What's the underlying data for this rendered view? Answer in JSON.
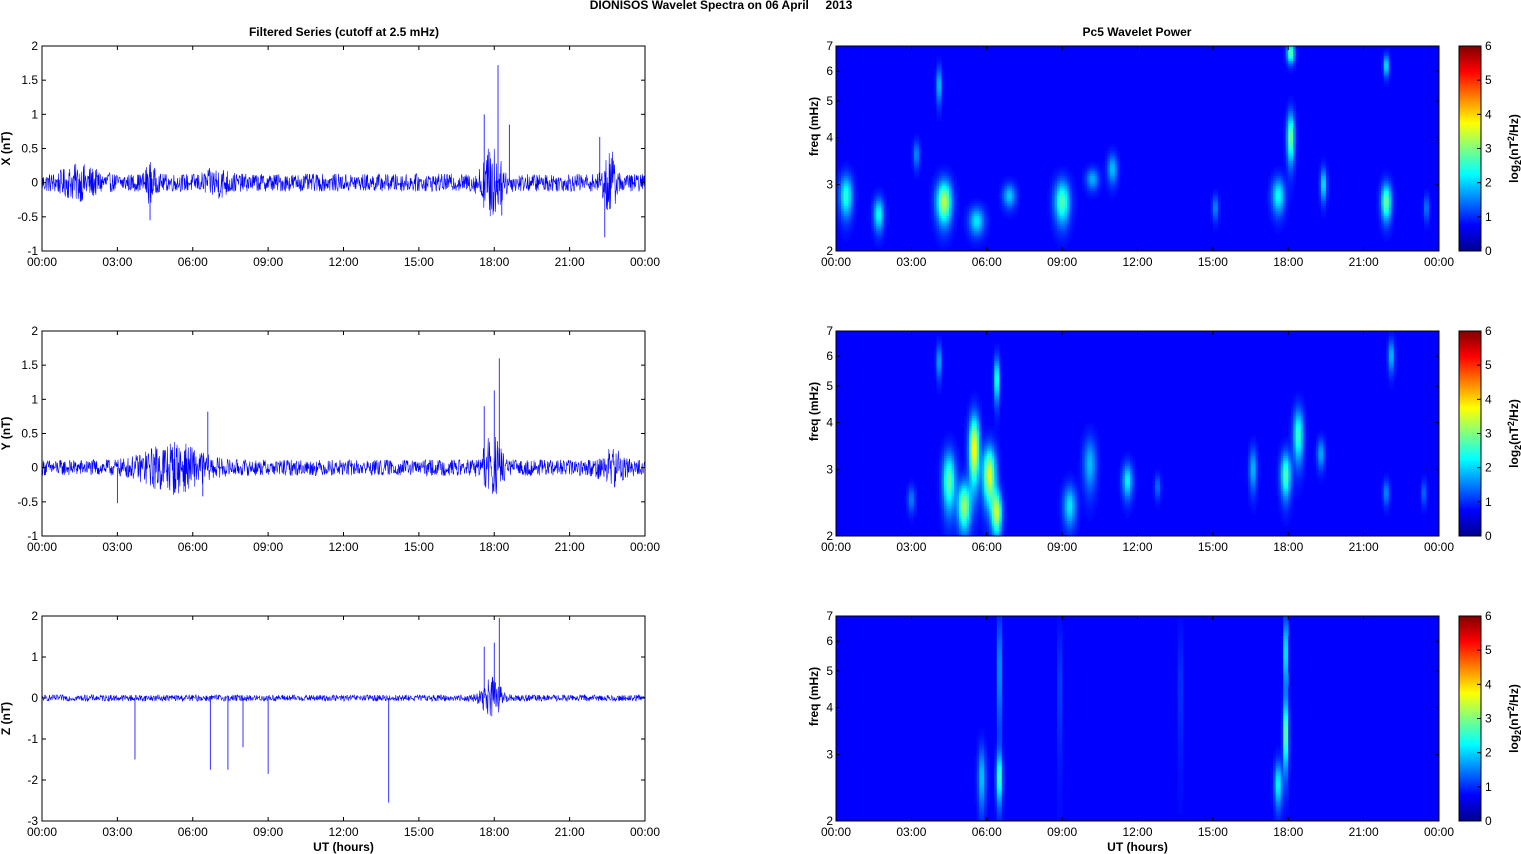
{
  "figure": {
    "title": "DIONISOS Wavelet Spectra on 06 April     2013",
    "left_title": "Filtered Series (cutoff at 2.5 mHz)",
    "right_title": "Pc5 Wavelet Power"
  },
  "chart_data": [
    {
      "type": "line",
      "panel": "X",
      "ylabel": "X (nT)",
      "xlabel": "",
      "xlim": [
        0,
        24
      ],
      "ylim": [
        -1,
        2
      ],
      "yticks": [
        "2",
        "1.5",
        "1",
        "0.5",
        "0",
        "-0.5",
        "-1"
      ],
      "xticks": [
        "00:00",
        "03:00",
        "06:00",
        "09:00",
        "12:00",
        "15:00",
        "18:00",
        "21:00",
        "00:00"
      ],
      "noise_amplitude": 0.1,
      "bursts": [
        {
          "x": 1.5,
          "width": 1.5,
          "amp": 0.12
        },
        {
          "x": 4.3,
          "width": 0.4,
          "amp": 0.15
        },
        {
          "x": 7.0,
          "width": 1.0,
          "amp": 0.09
        },
        {
          "x": 17.9,
          "width": 0.8,
          "amp": 0.35
        },
        {
          "x": 22.6,
          "width": 0.5,
          "amp": 0.3
        }
      ],
      "spikes": [
        {
          "x": 18.15,
          "value": 1.72
        },
        {
          "x": 17.6,
          "value": 1.0
        },
        {
          "x": 18.6,
          "value": 0.85
        },
        {
          "x": 18.3,
          "value": -0.48
        },
        {
          "x": 4.3,
          "value": -0.55
        },
        {
          "x": 22.4,
          "value": -0.8
        },
        {
          "x": 22.2,
          "value": 0.67
        }
      ]
    },
    {
      "type": "line",
      "panel": "Y",
      "ylabel": "Y (nT)",
      "xlabel": "",
      "xlim": [
        0,
        24
      ],
      "ylim": [
        -1,
        2
      ],
      "yticks": [
        "2",
        "1.5",
        "1",
        "0.5",
        "0",
        "-0.5",
        "-1"
      ],
      "xticks": [
        "00:00",
        "03:00",
        "06:00",
        "09:00",
        "12:00",
        "15:00",
        "18:00",
        "21:00",
        "00:00"
      ],
      "noise_amplitude": 0.09,
      "bursts": [
        {
          "x": 5.2,
          "width": 2.5,
          "amp": 0.22
        },
        {
          "x": 17.9,
          "width": 0.8,
          "amp": 0.3
        },
        {
          "x": 22.7,
          "width": 1.0,
          "amp": 0.15
        }
      ],
      "spikes": [
        {
          "x": 18.2,
          "value": 1.6
        },
        {
          "x": 6.6,
          "value": 0.82
        },
        {
          "x": 17.6,
          "value": 0.9
        },
        {
          "x": 18.0,
          "value": 1.13
        },
        {
          "x": 3.0,
          "value": -0.52
        },
        {
          "x": 6.4,
          "value": -0.42
        }
      ]
    },
    {
      "type": "line",
      "panel": "Z",
      "ylabel": "Z (nT)",
      "xlabel": "UT (hours)",
      "xlim": [
        0,
        24
      ],
      "ylim": [
        -3,
        2
      ],
      "yticks": [
        "2",
        "1",
        "0",
        "-1",
        "-2",
        "-3"
      ],
      "xticks": [
        "00:00",
        "03:00",
        "06:00",
        "09:00",
        "12:00",
        "15:00",
        "18:00",
        "21:00",
        "00:00"
      ],
      "noise_amplitude": 0.06,
      "bursts": [
        {
          "x": 17.9,
          "width": 0.8,
          "amp": 0.35
        }
      ],
      "spikes": [
        {
          "x": 3.7,
          "value": -1.5
        },
        {
          "x": 6.7,
          "value": -1.75
        },
        {
          "x": 7.4,
          "value": -1.75
        },
        {
          "x": 8.0,
          "value": -1.2
        },
        {
          "x": 9.0,
          "value": -1.85
        },
        {
          "x": 13.8,
          "value": -2.55
        },
        {
          "x": 18.2,
          "value": 1.95
        },
        {
          "x": 17.6,
          "value": 1.25
        },
        {
          "x": 18.0,
          "value": 1.35
        }
      ]
    },
    {
      "type": "heatmap",
      "panel": "X",
      "ylabel": "freq (mHz)",
      "xlabel": "",
      "xlim": [
        0,
        24
      ],
      "ylim": [
        2,
        7
      ],
      "yscale": "log",
      "yticks": [
        "7",
        "6",
        "5",
        "4",
        "3",
        "2"
      ],
      "xticks": [
        "00:00",
        "03:00",
        "06:00",
        "09:00",
        "12:00",
        "15:00",
        "18:00",
        "21:00",
        "00:00"
      ],
      "colorbar": {
        "label": "log2(nT2/Hz)",
        "range": [
          0,
          6
        ],
        "ticks": [
          "6",
          "5",
          "4",
          "3",
          "2",
          "1",
          "0"
        ]
      },
      "blobs": [
        {
          "t": 0.4,
          "f": 2.8,
          "power": 2.0,
          "tw": 0.25,
          "fw": 0.35
        },
        {
          "t": 1.7,
          "f": 2.5,
          "power": 1.8,
          "tw": 0.2,
          "fw": 0.25
        },
        {
          "t": 3.2,
          "f": 3.6,
          "power": 1.0,
          "tw": 0.12,
          "fw": 0.3
        },
        {
          "t": 4.3,
          "f": 2.7,
          "power": 3.0,
          "tw": 0.3,
          "fw": 0.35
        },
        {
          "t": 4.1,
          "f": 5.5,
          "power": 1.5,
          "tw": 0.1,
          "fw": 0.6
        },
        {
          "t": 5.6,
          "f": 2.4,
          "power": 1.6,
          "tw": 0.3,
          "fw": 0.2
        },
        {
          "t": 6.9,
          "f": 2.8,
          "power": 1.4,
          "tw": 0.25,
          "fw": 0.2
        },
        {
          "t": 9.0,
          "f": 2.7,
          "power": 2.3,
          "tw": 0.3,
          "fw": 0.35
        },
        {
          "t": 10.2,
          "f": 3.1,
          "power": 1.2,
          "tw": 0.25,
          "fw": 0.2
        },
        {
          "t": 11.0,
          "f": 3.3,
          "power": 1.3,
          "tw": 0.2,
          "fw": 0.3
        },
        {
          "t": 15.1,
          "f": 2.6,
          "power": 1.0,
          "tw": 0.12,
          "fw": 0.2
        },
        {
          "t": 17.6,
          "f": 2.8,
          "power": 1.8,
          "tw": 0.25,
          "fw": 0.3
        },
        {
          "t": 18.1,
          "f": 4.0,
          "power": 2.6,
          "tw": 0.15,
          "fw": 0.6
        },
        {
          "t": 18.1,
          "f": 6.7,
          "power": 2.5,
          "tw": 0.15,
          "fw": 0.4
        },
        {
          "t": 19.4,
          "f": 3.0,
          "power": 1.7,
          "tw": 0.12,
          "fw": 0.3
        },
        {
          "t": 21.9,
          "f": 2.7,
          "power": 2.5,
          "tw": 0.2,
          "fw": 0.3
        },
        {
          "t": 21.9,
          "f": 6.2,
          "power": 1.8,
          "tw": 0.1,
          "fw": 0.4
        },
        {
          "t": 23.5,
          "f": 2.6,
          "power": 0.9,
          "tw": 0.1,
          "fw": 0.2
        }
      ]
    },
    {
      "type": "heatmap",
      "panel": "Y",
      "ylabel": "freq (mHz)",
      "xlabel": "",
      "xlim": [
        0,
        24
      ],
      "ylim": [
        2,
        7
      ],
      "yscale": "log",
      "yticks": [
        "7",
        "6",
        "5",
        "4",
        "3",
        "2"
      ],
      "xticks": [
        "00:00",
        "03:00",
        "06:00",
        "09:00",
        "12:00",
        "15:00",
        "18:00",
        "21:00",
        "00:00"
      ],
      "colorbar": {
        "label": "log2(nT2/Hz)",
        "range": [
          0,
          6
        ],
        "ticks": [
          "6",
          "5",
          "4",
          "3",
          "2",
          "1",
          "0"
        ]
      },
      "blobs": [
        {
          "t": 4.5,
          "f": 2.8,
          "power": 2.4,
          "tw": 0.25,
          "fw": 0.5
        },
        {
          "t": 5.1,
          "f": 2.4,
          "power": 2.8,
          "tw": 0.25,
          "fw": 0.35
        },
        {
          "t": 5.5,
          "f": 3.4,
          "power": 3.6,
          "tw": 0.2,
          "fw": 0.7
        },
        {
          "t": 6.1,
          "f": 2.9,
          "power": 3.3,
          "tw": 0.25,
          "fw": 0.5
        },
        {
          "t": 6.4,
          "f": 2.3,
          "power": 3.0,
          "tw": 0.2,
          "fw": 0.3
        },
        {
          "t": 6.4,
          "f": 5.2,
          "power": 2.2,
          "tw": 0.1,
          "fw": 0.7
        },
        {
          "t": 4.1,
          "f": 5.8,
          "power": 1.3,
          "tw": 0.1,
          "fw": 0.6
        },
        {
          "t": 3.0,
          "f": 2.5,
          "power": 0.9,
          "tw": 0.15,
          "fw": 0.2
        },
        {
          "t": 9.3,
          "f": 2.4,
          "power": 1.6,
          "tw": 0.25,
          "fw": 0.3
        },
        {
          "t": 10.1,
          "f": 3.1,
          "power": 1.3,
          "tw": 0.25,
          "fw": 0.5
        },
        {
          "t": 11.6,
          "f": 2.8,
          "power": 1.7,
          "tw": 0.2,
          "fw": 0.3
        },
        {
          "t": 12.8,
          "f": 2.7,
          "power": 0.8,
          "tw": 0.12,
          "fw": 0.2
        },
        {
          "t": 16.6,
          "f": 3.0,
          "power": 1.3,
          "tw": 0.15,
          "fw": 0.4
        },
        {
          "t": 17.9,
          "f": 2.9,
          "power": 2.3,
          "tw": 0.2,
          "fw": 0.4
        },
        {
          "t": 18.4,
          "f": 3.7,
          "power": 2.1,
          "tw": 0.2,
          "fw": 0.6
        },
        {
          "t": 19.3,
          "f": 3.3,
          "power": 1.2,
          "tw": 0.15,
          "fw": 0.3
        },
        {
          "t": 21.9,
          "f": 2.6,
          "power": 1.0,
          "tw": 0.12,
          "fw": 0.2
        },
        {
          "t": 22.1,
          "f": 6.0,
          "power": 1.4,
          "tw": 0.12,
          "fw": 0.6
        },
        {
          "t": 23.4,
          "f": 2.6,
          "power": 0.8,
          "tw": 0.1,
          "fw": 0.2
        }
      ]
    },
    {
      "type": "heatmap",
      "panel": "Z",
      "ylabel": "freq (mHz)",
      "xlabel": "UT (hours)",
      "xlim": [
        0,
        24
      ],
      "ylim": [
        2,
        7
      ],
      "yscale": "log",
      "yticks": [
        "7",
        "6",
        "5",
        "4",
        "3",
        "2"
      ],
      "xticks": [
        "00:00",
        "03:00",
        "06:00",
        "09:00",
        "12:00",
        "15:00",
        "18:00",
        "21:00",
        "00:00"
      ],
      "colorbar": {
        "label": "log2(nT2/Hz)",
        "range": [
          0,
          6
        ],
        "ticks": [
          "6",
          "5",
          "4",
          "3",
          "2",
          "1",
          "0"
        ]
      },
      "blobs": [
        {
          "t": 5.8,
          "f": 2.6,
          "power": 1.4,
          "tw": 0.15,
          "fw": 0.5
        },
        {
          "t": 6.5,
          "f": 2.6,
          "power": 2.2,
          "tw": 0.12,
          "fw": 0.4
        },
        {
          "t": 6.5,
          "f": 5.0,
          "power": 1.8,
          "tw": 0.06,
          "fw": 1.8
        },
        {
          "t": 8.9,
          "f": 4.5,
          "power": 1.0,
          "tw": 0.05,
          "fw": 1.8
        },
        {
          "t": 13.7,
          "f": 4.5,
          "power": 0.8,
          "tw": 0.05,
          "fw": 1.8
        },
        {
          "t": 17.6,
          "f": 2.5,
          "power": 1.8,
          "tw": 0.15,
          "fw": 0.35
        },
        {
          "t": 17.9,
          "f": 3.4,
          "power": 2.8,
          "tw": 0.1,
          "fw": 0.7
        },
        {
          "t": 17.9,
          "f": 5.6,
          "power": 2.2,
          "tw": 0.08,
          "fw": 1.2
        }
      ]
    }
  ]
}
